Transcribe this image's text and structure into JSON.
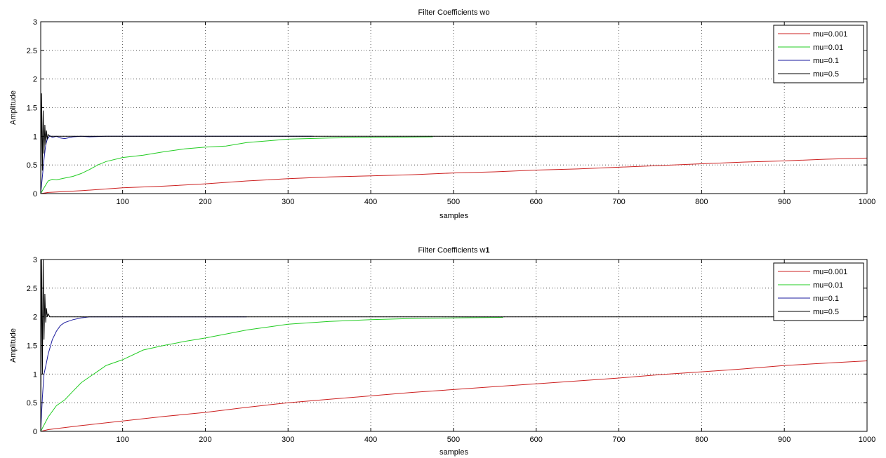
{
  "chart_data": [
    {
      "type": "line",
      "title": "Filter Coefficients wo",
      "xlabel": "samples",
      "ylabel": "Amplitude",
      "xlim": [
        1,
        1000
      ],
      "ylim": [
        0,
        3
      ],
      "xticks": [
        100,
        200,
        300,
        400,
        500,
        600,
        700,
        800,
        900,
        1000
      ],
      "yticks": [
        0,
        0.5,
        1,
        1.5,
        2,
        2.5,
        3
      ],
      "ytick_labels": [
        "0",
        "0.5",
        "1",
        "1.5",
        "2",
        "2.5",
        "3"
      ],
      "grid": true,
      "legend_position": "top-right",
      "series": [
        {
          "name": "mu=0.001",
          "color": "#cc2020",
          "x": [
            1,
            10,
            50,
            100,
            150,
            200,
            250,
            300,
            350,
            400,
            450,
            500,
            550,
            600,
            650,
            700,
            750,
            800,
            850,
            900,
            950,
            1000
          ],
          "y": [
            0,
            0.02,
            0.05,
            0.1,
            0.13,
            0.17,
            0.22,
            0.26,
            0.29,
            0.31,
            0.33,
            0.36,
            0.38,
            0.41,
            0.43,
            0.46,
            0.49,
            0.52,
            0.55,
            0.57,
            0.6,
            0.62
          ]
        },
        {
          "name": "mu=0.01",
          "color": "#22cc22",
          "x": [
            1,
            5,
            10,
            15,
            20,
            30,
            40,
            50,
            60,
            70,
            80,
            100,
            125,
            150,
            175,
            200,
            225,
            250,
            275,
            300,
            350,
            400,
            475
          ],
          "y": [
            0,
            0.1,
            0.22,
            0.25,
            0.24,
            0.27,
            0.3,
            0.35,
            0.42,
            0.5,
            0.56,
            0.63,
            0.67,
            0.73,
            0.78,
            0.81,
            0.83,
            0.89,
            0.92,
            0.95,
            0.97,
            0.98,
            0.99
          ]
        },
        {
          "name": "mu=0.1",
          "color": "#1a1a9c",
          "x": [
            1,
            3,
            5,
            7,
            9,
            12,
            15,
            20,
            25,
            30,
            40,
            50,
            60,
            80,
            100,
            250,
            330
          ],
          "y": [
            0,
            0.3,
            0.6,
            0.85,
            0.95,
            1.01,
            0.98,
            1.0,
            0.97,
            0.96,
            0.99,
            1.0,
            0.99,
            1.0,
            1.0,
            1.0,
            1.0
          ]
        },
        {
          "name": "mu=0.5",
          "color": "#000000",
          "x": [
            1,
            2,
            3,
            4,
            5,
            6,
            7,
            8,
            9,
            10,
            12,
            15,
            20,
            1000
          ],
          "y": [
            0,
            1.75,
            0.4,
            1.45,
            0.7,
            1.2,
            0.85,
            1.1,
            0.95,
            1.03,
            1.0,
            1.0,
            1.0,
            1.0
          ]
        }
      ]
    },
    {
      "type": "line",
      "title": "Filter Coefficients w",
      "title_suffix": "1",
      "xlabel": "samples",
      "ylabel": "Amplitude",
      "xlim": [
        1,
        1000
      ],
      "ylim": [
        0,
        3
      ],
      "xticks": [
        100,
        200,
        300,
        400,
        500,
        600,
        700,
        800,
        900,
        1000
      ],
      "yticks": [
        0,
        0.5,
        1,
        1.5,
        2,
        2.5,
        3
      ],
      "ytick_labels": [
        "0",
        "0.5",
        "1",
        "1.5",
        "2",
        "2.5",
        "3"
      ],
      "grid": true,
      "legend_position": "top-right",
      "series": [
        {
          "name": "mu=0.001",
          "color": "#cc2020",
          "x": [
            1,
            10,
            50,
            100,
            150,
            200,
            250,
            300,
            350,
            400,
            450,
            500,
            550,
            600,
            650,
            700,
            750,
            800,
            850,
            900,
            950,
            1000
          ],
          "y": [
            0,
            0.03,
            0.1,
            0.18,
            0.26,
            0.33,
            0.42,
            0.5,
            0.56,
            0.62,
            0.68,
            0.73,
            0.78,
            0.83,
            0.88,
            0.93,
            0.99,
            1.04,
            1.09,
            1.15,
            1.19,
            1.23
          ]
        },
        {
          "name": "mu=0.01",
          "color": "#22cc22",
          "x": [
            1,
            10,
            20,
            30,
            40,
            50,
            60,
            70,
            80,
            100,
            125,
            150,
            175,
            200,
            225,
            250,
            275,
            300,
            350,
            400,
            450,
            500,
            560
          ],
          "y": [
            0,
            0.25,
            0.45,
            0.55,
            0.7,
            0.85,
            0.95,
            1.05,
            1.15,
            1.25,
            1.42,
            1.5,
            1.57,
            1.63,
            1.7,
            1.77,
            1.82,
            1.87,
            1.92,
            1.95,
            1.97,
            1.98,
            1.99
          ]
        },
        {
          "name": "mu=0.1",
          "color": "#1a1a9c",
          "x": [
            1,
            3,
            5,
            8,
            10,
            15,
            20,
            25,
            30,
            40,
            50,
            60,
            80,
            100,
            250
          ],
          "y": [
            0,
            0.6,
            1.0,
            1.2,
            1.35,
            1.6,
            1.75,
            1.85,
            1.9,
            1.95,
            1.98,
            2.0,
            2.0,
            2.0,
            2.0
          ]
        },
        {
          "name": "mu=0.5",
          "color": "#000000",
          "x": [
            1,
            2,
            3,
            4,
            5,
            6,
            7,
            8,
            9,
            10,
            12,
            15,
            20,
            1000
          ],
          "y": [
            0,
            3.0,
            1.0,
            3.0,
            1.6,
            2.4,
            1.9,
            2.15,
            2.0,
            2.05,
            2.0,
            2.0,
            2.0,
            2.0
          ]
        }
      ]
    }
  ]
}
